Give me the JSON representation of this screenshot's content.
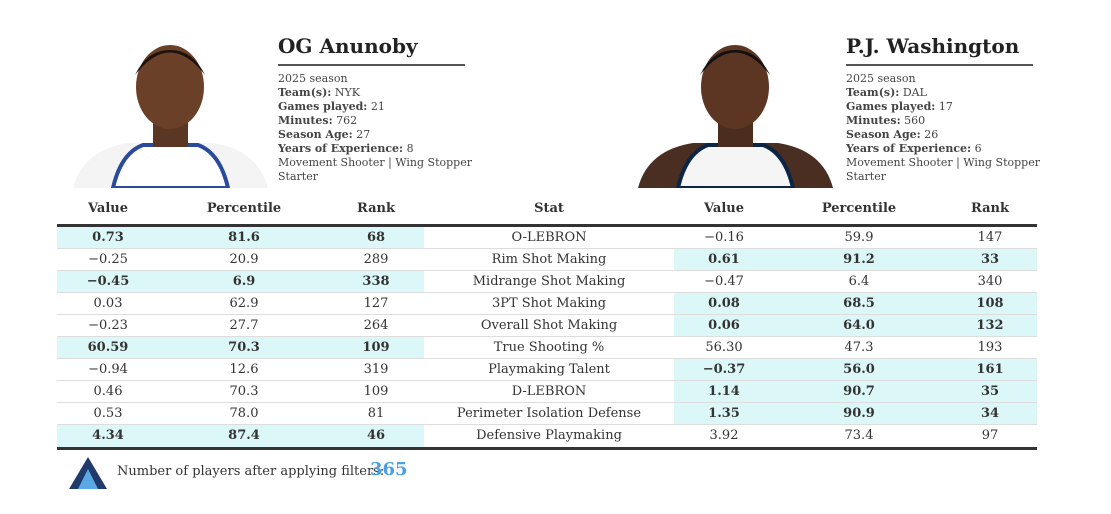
{
  "players": [
    {
      "name": "OG Anunoby",
      "season": "2025 season",
      "details": [
        {
          "label": "Team(s):",
          "value": "NYK"
        },
        {
          "label": "Games played:",
          "value": "21"
        },
        {
          "label": "Minutes:",
          "value": "762"
        },
        {
          "label": "Season Age:",
          "value": "27"
        },
        {
          "label": "Years of Experience:",
          "value": "8"
        }
      ],
      "roles": "Movement Shooter | Wing Stopper",
      "status": "Starter"
    },
    {
      "name": "P.J. Washington",
      "season": "2025 season",
      "details": [
        {
          "label": "Team(s):",
          "value": "DAL"
        },
        {
          "label": "Games played:",
          "value": "17"
        },
        {
          "label": "Minutes:",
          "value": "560"
        },
        {
          "label": "Season Age:",
          "value": "26"
        },
        {
          "label": "Years of Experience:",
          "value": "6"
        }
      ],
      "roles": "Movement Shooter | Wing Stopper",
      "status": "Starter"
    }
  ],
  "table": {
    "columns": [
      "Value",
      "Percentile",
      "Rank",
      "Stat",
      "Value",
      "Percentile",
      "Rank"
    ],
    "highlight_color": "#dcf7f7",
    "rows": [
      {
        "cells": [
          "0.73",
          "81.6",
          "68",
          "O-LEBRON",
          "−0.16",
          "59.9",
          "147"
        ],
        "highlight": "left"
      },
      {
        "cells": [
          "−0.25",
          "20.9",
          "289",
          "Rim Shot Making",
          "0.61",
          "91.2",
          "33"
        ],
        "highlight": "right"
      },
      {
        "cells": [
          "−0.45",
          "6.9",
          "338",
          "Midrange Shot Making",
          "−0.47",
          "6.4",
          "340"
        ],
        "highlight": "left"
      },
      {
        "cells": [
          "0.03",
          "62.9",
          "127",
          "3PT Shot Making",
          "0.08",
          "68.5",
          "108"
        ],
        "highlight": "right"
      },
      {
        "cells": [
          "−0.23",
          "27.7",
          "264",
          "Overall Shot Making",
          "0.06",
          "64.0",
          "132"
        ],
        "highlight": "right"
      },
      {
        "cells": [
          "60.59",
          "70.3",
          "109",
          "True Shooting %",
          "56.30",
          "47.3",
          "193"
        ],
        "highlight": "left"
      },
      {
        "cells": [
          "−0.94",
          "12.6",
          "319",
          "Playmaking Talent",
          "−0.37",
          "56.0",
          "161"
        ],
        "highlight": "right"
      },
      {
        "cells": [
          "0.46",
          "70.3",
          "109",
          "D-LEBRON",
          "1.14",
          "90.7",
          "35"
        ],
        "highlight": "right"
      },
      {
        "cells": [
          "0.53",
          "78.0",
          "81",
          "Perimeter Isolation Defense",
          "1.35",
          "90.9",
          "34"
        ],
        "highlight": "right"
      },
      {
        "cells": [
          "4.34",
          "87.4",
          "46",
          "Defensive Playmaking",
          "3.92",
          "73.4",
          "97"
        ],
        "highlight": "left"
      }
    ]
  },
  "footer": {
    "text": "Number of players after applying filters:",
    "count": "365"
  }
}
